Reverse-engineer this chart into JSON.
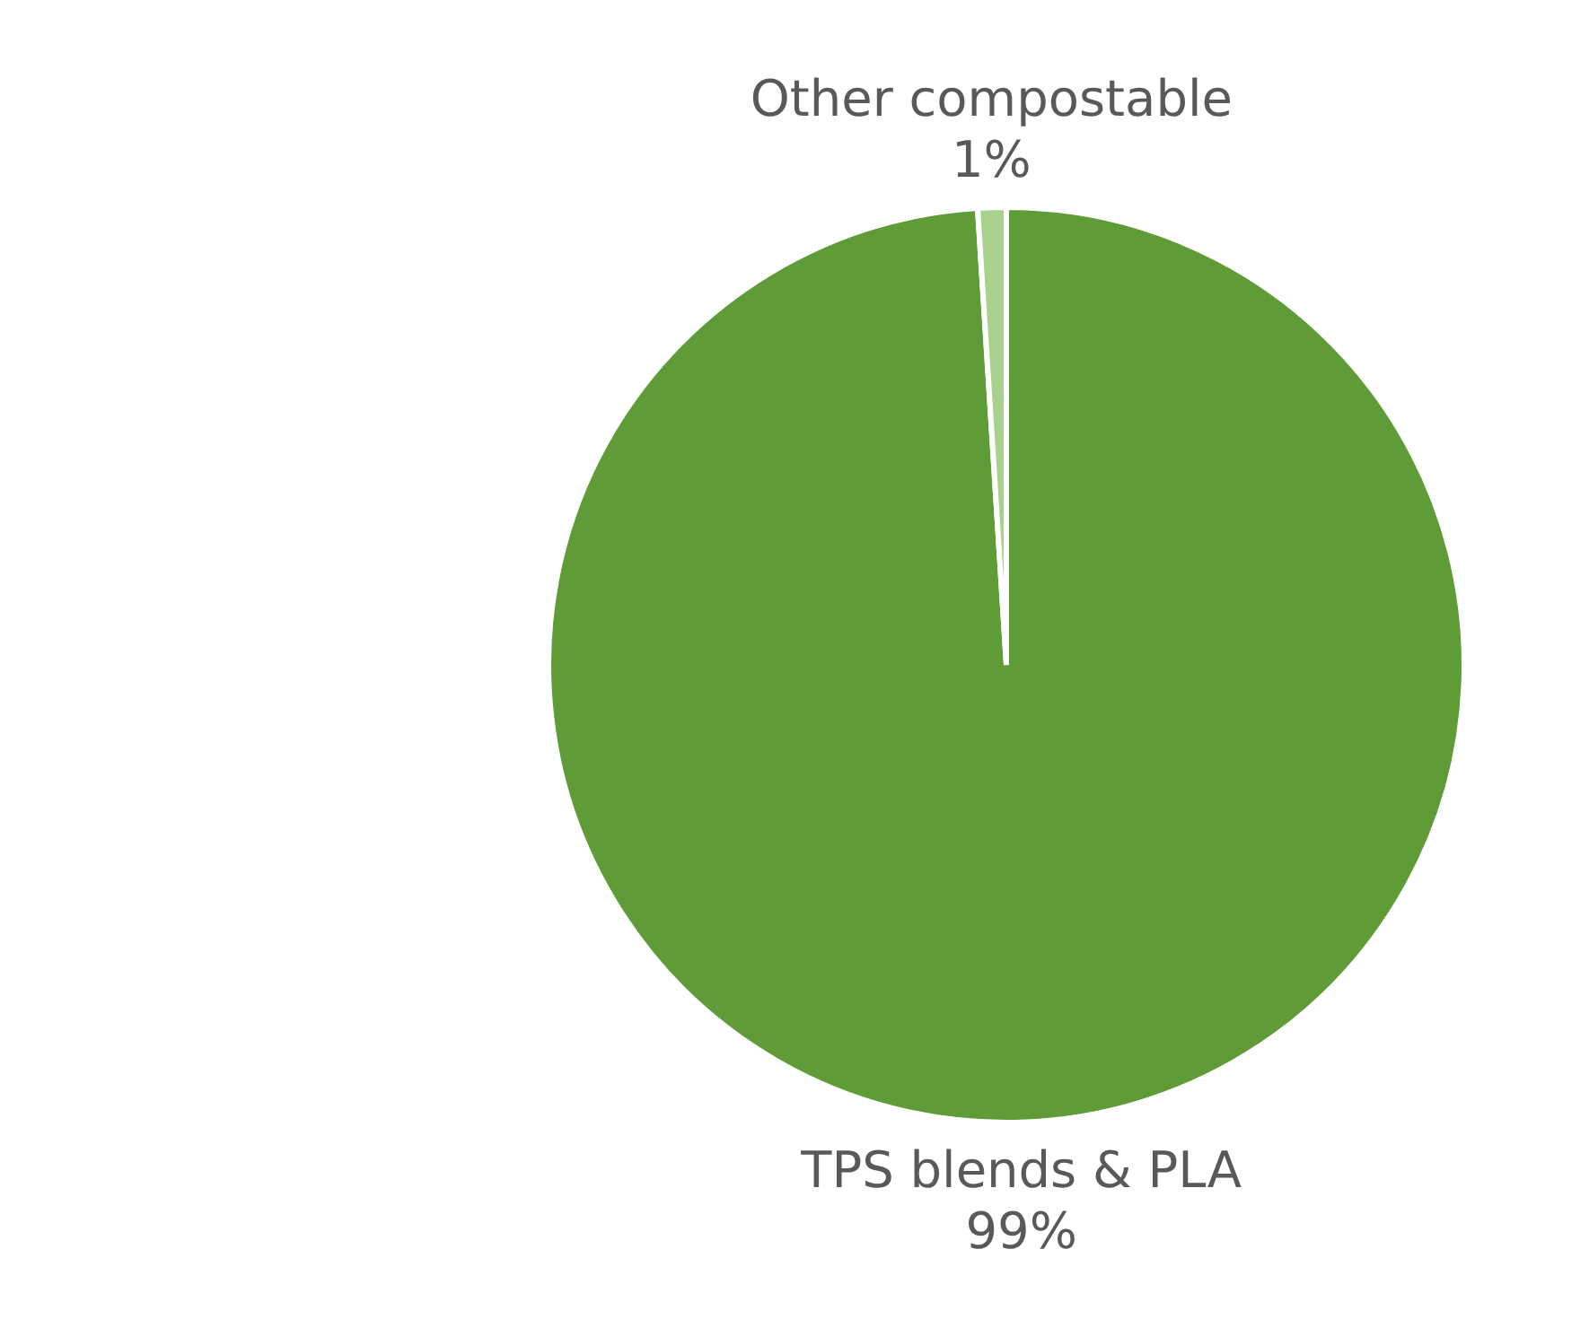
{
  "chart_data": {
    "type": "pie",
    "categories": [
      "TPS blends & PLA",
      "Other compostable"
    ],
    "values": [
      99,
      1
    ],
    "colors": [
      "#5f9b37",
      "#a9d18e"
    ],
    "value_labels": [
      "99%",
      "1%"
    ]
  }
}
